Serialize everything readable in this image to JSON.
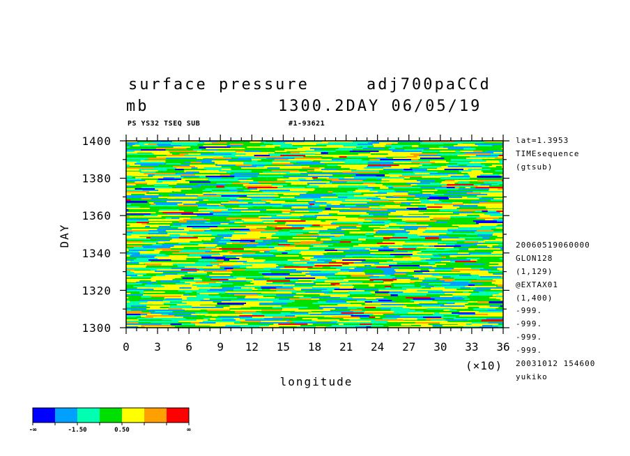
{
  "header": {
    "title_left": "surface pressure",
    "title_right": "adj700paCCd",
    "units": "mb",
    "time_stamp": "1300.2DAY 06/05/19",
    "sub_left": "PS YS32 TSEQ SUB",
    "sub_right": "#1-93621"
  },
  "side_info": {
    "top": [
      "lat=1.3953",
      "TIMEsequence",
      "(gtsub)"
    ],
    "bottom": [
      "20060519060000",
      "GLON128",
      "(1,129)",
      "@EXTAX01",
      "(1,400)",
      "-999.",
      "-999.",
      "-999.",
      "-999.",
      "20031012 154600",
      "yukiko"
    ]
  },
  "colorbar": {
    "colors": [
      "#0000ff",
      "#00a0ff",
      "#00ffb0",
      "#00e000",
      "#ffff00",
      "#ffa000",
      "#ff0000"
    ],
    "labels": [
      "-∞",
      "-1.50",
      "0.50",
      "∞"
    ]
  },
  "chart_data": {
    "type": "heatmap",
    "title": "surface pressure",
    "xlabel": "longitude",
    "x_multiplier": "(×10)",
    "ylabel": "DAY",
    "xlim": [
      0,
      36
    ],
    "ylim": [
      1300,
      1400
    ],
    "x_ticks": [
      "0",
      "3",
      "6",
      "9",
      "12",
      "15",
      "18",
      "21",
      "24",
      "27",
      "30",
      "33",
      "36"
    ],
    "y_ticks": [
      "1300",
      "1320",
      "1340",
      "1360",
      "1380",
      "1400"
    ],
    "color_scale": [
      "#0000ff",
      "#00a0ff",
      "#00ffb0",
      "#00e000",
      "#ffff00",
      "#ffa000",
      "#ff0000"
    ],
    "pattern": "zonally elongated noisy bands, predominantly green/cyan/yellow with scattered blue and red streaks"
  }
}
